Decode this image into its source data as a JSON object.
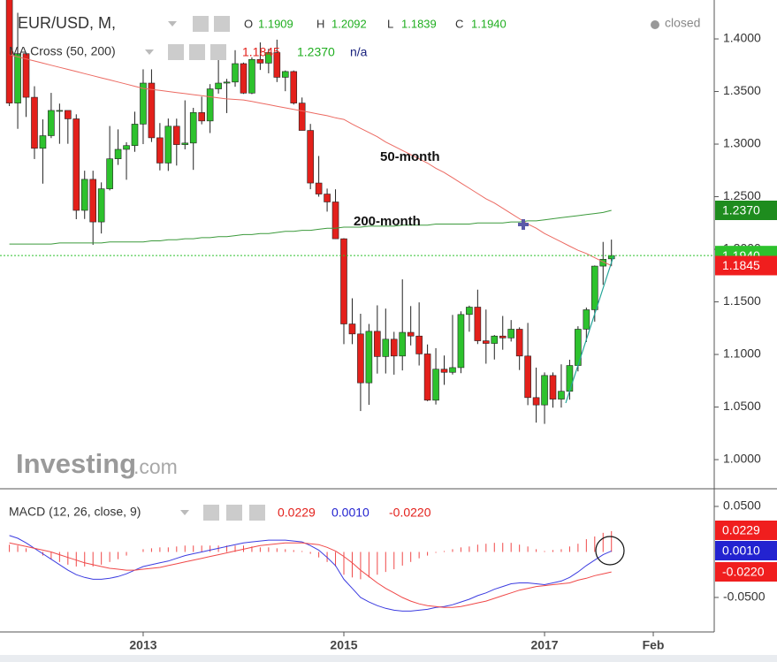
{
  "chart_data": [
    {
      "type": "candlestick",
      "title": "EUR/USD, M,",
      "status": "closed",
      "header": {
        "o_label": "O",
        "o": "1.1909",
        "h_label": "H",
        "h": "1.2092",
        "l_label": "L",
        "l": "1.1839",
        "c_label": "C",
        "c": "1.1940"
      },
      "indicator": {
        "title": "MA Cross (50, 200)",
        "values": [
          "1.1845",
          "1.2370",
          "n/a"
        ]
      },
      "watermark": [
        "Investing",
        ".com"
      ],
      "up_color": "#2dc22d",
      "down_color": "#e3201b",
      "categories": [
        "2011-09",
        "2011-10",
        "2011-11",
        "2011-12",
        "2012-01",
        "2012-02",
        "2012-03",
        "2012-04",
        "2012-05",
        "2012-06",
        "2012-07",
        "2012-08",
        "2012-09",
        "2012-10",
        "2012-11",
        "2012-12",
        "2013-01",
        "2013-02",
        "2013-03",
        "2013-04",
        "2013-05",
        "2013-06",
        "2013-07",
        "2013-08",
        "2013-09",
        "2013-10",
        "2013-11",
        "2013-12",
        "2014-01",
        "2014-02",
        "2014-03",
        "2014-04",
        "2014-05",
        "2014-06",
        "2014-07",
        "2014-08",
        "2014-09",
        "2014-10",
        "2014-11",
        "2014-12",
        "2015-01",
        "2015-02",
        "2015-03",
        "2015-04",
        "2015-05",
        "2015-06",
        "2015-07",
        "2015-08",
        "2015-09",
        "2015-10",
        "2015-11",
        "2015-12",
        "2016-01",
        "2016-02",
        "2016-03",
        "2016-04",
        "2016-05",
        "2016-06",
        "2016-07",
        "2016-08",
        "2016-09",
        "2016-10",
        "2016-11",
        "2016-12",
        "2017-01",
        "2017-02",
        "2017-03",
        "2017-04",
        "2017-05",
        "2017-06",
        "2017-07",
        "2017-08",
        "2017-09"
      ],
      "open": [
        1.4395,
        1.339,
        1.386,
        1.3445,
        1.296,
        1.308,
        1.332,
        1.332,
        1.324,
        1.237,
        1.2665,
        1.226,
        1.2575,
        1.286,
        1.295,
        1.2986,
        1.319,
        1.358,
        1.306,
        1.282,
        1.317,
        1.2995,
        1.301,
        1.33,
        1.322,
        1.3525,
        1.358,
        1.359,
        1.3765,
        1.3485,
        1.3805,
        1.377,
        1.387,
        1.3635,
        1.369,
        1.339,
        1.313,
        1.263,
        1.2525,
        1.245,
        1.21,
        1.129,
        1.1195,
        1.073,
        1.122,
        1.098,
        1.1145,
        1.0985,
        1.121,
        1.1175,
        1.1005,
        1.0565,
        1.086,
        1.083,
        1.0875,
        1.138,
        1.145,
        1.113,
        1.1105,
        1.1175,
        1.1157,
        1.124,
        1.0985,
        1.059,
        1.052,
        1.08,
        1.0575,
        1.065,
        1.0895,
        1.124,
        1.1425,
        1.184,
        1.1909
      ],
      "high": [
        1.455,
        1.4248,
        1.387,
        1.355,
        1.3235,
        1.3487,
        1.3385,
        1.3285,
        1.3283,
        1.2747,
        1.2747,
        1.2636,
        1.3172,
        1.314,
        1.3018,
        1.3308,
        1.3711,
        1.3711,
        1.32,
        1.3243,
        1.3242,
        1.3416,
        1.3345,
        1.3451,
        1.357,
        1.3832,
        1.362,
        1.3893,
        1.3775,
        1.3825,
        1.3967,
        1.3906,
        1.3993,
        1.37,
        1.37,
        1.3443,
        1.3192,
        1.2887,
        1.2577,
        1.257,
        1.2105,
        1.1534,
        1.1387,
        1.129,
        1.1467,
        1.1436,
        1.1215,
        1.1714,
        1.146,
        1.1495,
        1.1095,
        1.106,
        1.099,
        1.1376,
        1.141,
        1.1464,
        1.1616,
        1.1427,
        1.1185,
        1.1366,
        1.1327,
        1.1258,
        1.13,
        1.0875,
        1.0829,
        1.0829,
        1.0906,
        1.095,
        1.1268,
        1.1446,
        1.1846,
        1.207,
        1.2092
      ],
      "low": [
        1.3362,
        1.3145,
        1.3258,
        1.2858,
        1.2624,
        1.3057,
        1.3003,
        1.3003,
        1.2286,
        1.2288,
        1.2042,
        1.215,
        1.256,
        1.2802,
        1.2661,
        1.2927,
        1.3,
        1.302,
        1.275,
        1.2745,
        1.2796,
        1.295,
        1.2755,
        1.3188,
        1.3105,
        1.348,
        1.3295,
        1.3545,
        1.3477,
        1.3475,
        1.3705,
        1.3673,
        1.359,
        1.3503,
        1.3376,
        1.3131,
        1.2571,
        1.25,
        1.2358,
        1.2098,
        1.1098,
        1.1098,
        1.0462,
        1.0521,
        1.0818,
        1.0819,
        1.0808,
        1.0848,
        1.1086,
        1.0895,
        1.0556,
        1.0524,
        1.0711,
        1.0809,
        1.0822,
        1.1216,
        1.1099,
        1.0912,
        1.0952,
        1.1045,
        1.1123,
        1.0852,
        1.0518,
        1.0352,
        1.034,
        1.0494,
        1.0495,
        1.057,
        1.0839,
        1.1118,
        1.1312,
        1.1662,
        1.1839
      ],
      "close": [
        1.339,
        1.386,
        1.3445,
        1.296,
        1.308,
        1.332,
        1.332,
        1.324,
        1.237,
        1.2665,
        1.226,
        1.2575,
        1.286,
        1.295,
        1.2986,
        1.319,
        1.358,
        1.306,
        1.282,
        1.317,
        1.2995,
        1.301,
        1.33,
        1.322,
        1.3525,
        1.358,
        1.359,
        1.3765,
        1.3485,
        1.3805,
        1.377,
        1.387,
        1.3635,
        1.369,
        1.339,
        1.313,
        1.263,
        1.2525,
        1.245,
        1.21,
        1.129,
        1.1195,
        1.073,
        1.122,
        1.098,
        1.1145,
        1.0985,
        1.121,
        1.1175,
        1.1005,
        1.0565,
        1.086,
        1.083,
        1.0875,
        1.138,
        1.145,
        1.113,
        1.1105,
        1.1175,
        1.1157,
        1.124,
        1.0985,
        1.059,
        1.052,
        1.08,
        1.0575,
        1.065,
        1.0895,
        1.124,
        1.1425,
        1.184,
        1.1905,
        1.194
      ],
      "series": [
        {
          "name": "50-month",
          "color": "#ec6a62",
          "values": [
            1.385,
            1.383,
            1.381,
            1.379,
            1.377,
            1.375,
            1.373,
            1.371,
            1.369,
            1.367,
            1.365,
            1.363,
            1.361,
            1.359,
            1.357,
            1.355,
            1.353,
            1.352,
            1.351,
            1.35,
            1.349,
            1.348,
            1.347,
            1.346,
            1.345,
            1.344,
            1.343,
            1.3425,
            1.342,
            1.3405,
            1.339,
            1.3375,
            1.336,
            1.3345,
            1.333,
            1.3315,
            1.33,
            1.3285,
            1.327,
            1.325,
            1.3235,
            1.319,
            1.315,
            1.311,
            1.307,
            1.302,
            1.298,
            1.294,
            1.29,
            1.286,
            1.282,
            1.277,
            1.273,
            1.268,
            1.263,
            1.258,
            1.253,
            1.248,
            1.244,
            1.239,
            1.234,
            1.229,
            1.224,
            1.22,
            1.215,
            1.211,
            1.207,
            1.203,
            1.199,
            1.196,
            1.192,
            1.188,
            1.1845
          ]
        },
        {
          "name": "200-month",
          "color": "#3c9a3c",
          "values": [
            1.205,
            1.205,
            1.205,
            1.205,
            1.205,
            1.205,
            1.206,
            1.206,
            1.206,
            1.206,
            1.206,
            1.206,
            1.207,
            1.207,
            1.207,
            1.207,
            1.207,
            1.208,
            1.208,
            1.209,
            1.209,
            1.21,
            1.21,
            1.211,
            1.211,
            1.212,
            1.212,
            1.213,
            1.214,
            1.214,
            1.215,
            1.215,
            1.216,
            1.217,
            1.217,
            1.218,
            1.218,
            1.219,
            1.22,
            1.22,
            1.221,
            1.221,
            1.221,
            1.222,
            1.222,
            1.222,
            1.222,
            1.223,
            1.223,
            1.223,
            1.223,
            1.224,
            1.224,
            1.224,
            1.224,
            1.224,
            1.225,
            1.225,
            1.225,
            1.225,
            1.226,
            1.226,
            1.227,
            1.227,
            1.228,
            1.229,
            1.23,
            1.231,
            1.232,
            1.233,
            1.234,
            1.235,
            1.237
          ]
        }
      ],
      "ylim": [
        0.9723,
        1.437
      ],
      "yticks": [
        {
          "value": 1.0,
          "label": "1.0000"
        },
        {
          "value": 1.05,
          "label": "1.0500"
        },
        {
          "value": 1.1,
          "label": "1.1000"
        },
        {
          "value": 1.15,
          "label": "1.1500"
        },
        {
          "value": 1.2,
          "label": "1.2000"
        },
        {
          "value": 1.25,
          "label": "1.2500"
        },
        {
          "value": 1.3,
          "label": "1.3000"
        },
        {
          "value": 1.35,
          "label": "1.3500"
        },
        {
          "value": 1.4,
          "label": "1.4000"
        }
      ],
      "xticks": [
        {
          "value": "2013-01",
          "label": "2013"
        },
        {
          "value": "2015-01",
          "label": "2015"
        },
        {
          "value": "2017-01",
          "label": "2017"
        },
        {
          "value": "2018-02",
          "label": "Feb"
        }
      ]
    },
    {
      "type": "macd",
      "title": "MACD (12, 26, close, 9)",
      "legend_values": [
        "0.0229",
        "0.0010",
        "-0.0220"
      ],
      "series": [
        {
          "color": "#f04848",
          "kind": "histogram",
          "values": [
            0.008,
            0.007,
            0.004,
            0.0,
            -0.004,
            -0.008,
            -0.011,
            -0.014,
            -0.016,
            -0.016,
            -0.016,
            -0.014,
            -0.011,
            -0.008,
            -0.004,
            0.0,
            0.003,
            0.004,
            0.005,
            0.005,
            0.006,
            0.007,
            0.007,
            0.007,
            0.007,
            0.007,
            0.007,
            0.007,
            0.007,
            0.006,
            0.005,
            0.005,
            0.004,
            0.003,
            0.002,
            0.001,
            -0.002,
            -0.006,
            -0.011,
            -0.016,
            -0.025,
            -0.028,
            -0.03,
            -0.028,
            -0.025,
            -0.022,
            -0.019,
            -0.015,
            -0.011,
            -0.007,
            -0.004,
            -0.001,
            0.001,
            0.003,
            0.005,
            0.006,
            0.008,
            0.009,
            0.01,
            0.01,
            0.01,
            0.008,
            0.006,
            0.003,
            0.001,
            0.002,
            0.003,
            0.006,
            0.009,
            0.014,
            0.017,
            0.021,
            0.0229
          ]
        },
        {
          "color": "#3c3ce0",
          "kind": "line",
          "values": [
            0.018,
            0.015,
            0.01,
            0.004,
            -0.002,
            -0.008,
            -0.014,
            -0.02,
            -0.025,
            -0.028,
            -0.03,
            -0.03,
            -0.029,
            -0.027,
            -0.024,
            -0.02,
            -0.016,
            -0.014,
            -0.012,
            -0.01,
            -0.007,
            -0.004,
            -0.002,
            0.0,
            0.002,
            0.004,
            0.006,
            0.008,
            0.01,
            0.011,
            0.012,
            0.013,
            0.013,
            0.013,
            0.012,
            0.011,
            0.007,
            0.002,
            -0.006,
            -0.015,
            -0.03,
            -0.04,
            -0.05,
            -0.055,
            -0.059,
            -0.062,
            -0.064,
            -0.065,
            -0.065,
            -0.064,
            -0.063,
            -0.061,
            -0.06,
            -0.058,
            -0.055,
            -0.052,
            -0.048,
            -0.045,
            -0.041,
            -0.038,
            -0.035,
            -0.034,
            -0.034,
            -0.035,
            -0.036,
            -0.034,
            -0.032,
            -0.028,
            -0.022,
            -0.015,
            -0.009,
            -0.003,
            0.001
          ]
        },
        {
          "color": "#f04848",
          "kind": "line",
          "values": [
            0.01,
            0.008,
            0.006,
            0.004,
            0.002,
            0.0,
            -0.003,
            -0.006,
            -0.009,
            -0.012,
            -0.014,
            -0.016,
            -0.018,
            -0.019,
            -0.02,
            -0.02,
            -0.019,
            -0.018,
            -0.017,
            -0.015,
            -0.013,
            -0.011,
            -0.009,
            -0.007,
            -0.005,
            -0.003,
            -0.001,
            0.001,
            0.003,
            0.005,
            0.007,
            0.008,
            0.009,
            0.01,
            0.01,
            0.01,
            0.009,
            0.008,
            0.005,
            0.001,
            -0.005,
            -0.012,
            -0.02,
            -0.027,
            -0.034,
            -0.04,
            -0.045,
            -0.05,
            -0.054,
            -0.057,
            -0.059,
            -0.06,
            -0.061,
            -0.061,
            -0.06,
            -0.058,
            -0.056,
            -0.054,
            -0.051,
            -0.048,
            -0.045,
            -0.042,
            -0.04,
            -0.038,
            -0.037,
            -0.036,
            -0.035,
            -0.034,
            -0.031,
            -0.029,
            -0.026,
            -0.024,
            -0.022
          ]
        }
      ],
      "ylim": [
        -0.0879,
        0.0694
      ],
      "yticks": [
        {
          "value": 0.05,
          "label": "0.0500"
        },
        {
          "value": -0.05,
          "label": "-0.0500"
        }
      ]
    }
  ]
}
